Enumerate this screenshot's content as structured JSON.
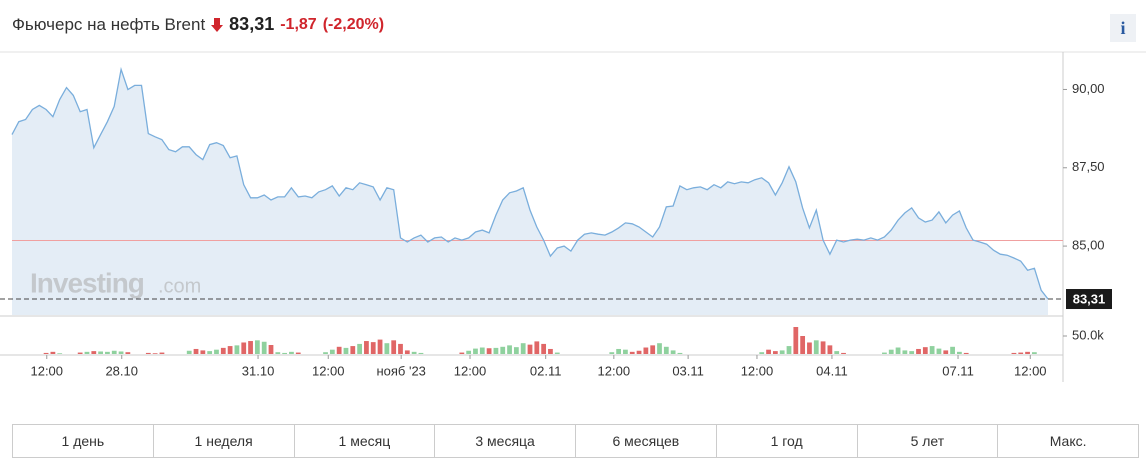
{
  "header": {
    "title": "Фьючерс на нефть Brent",
    "price": "83,31",
    "change": "-1,87",
    "change_pct": "(-2,20%)",
    "info": "i"
  },
  "chart_data": {
    "type": "line",
    "watermark": [
      "Investing",
      ".com"
    ],
    "x": [
      0,
      1,
      2,
      3,
      4,
      5,
      6,
      7,
      8,
      9,
      10,
      11,
      12,
      13,
      14,
      15,
      16,
      17,
      18,
      19,
      20,
      21,
      22,
      23,
      24,
      25,
      26,
      27,
      28,
      29,
      30,
      31,
      32,
      33,
      34,
      35,
      36,
      37,
      38,
      39,
      40,
      41,
      42,
      43,
      44,
      45,
      46,
      47,
      48,
      49,
      50,
      51,
      52,
      53,
      54,
      55,
      56,
      57,
      58,
      59,
      60,
      61,
      62,
      63,
      64,
      65,
      66,
      67,
      68,
      69,
      70,
      71,
      72,
      73,
      74,
      75,
      76,
      77,
      78,
      79,
      80,
      81,
      82,
      83,
      84,
      85,
      86,
      87,
      88,
      89,
      90,
      91,
      92,
      93,
      94,
      95,
      96,
      97,
      98,
      99,
      100,
      101,
      102,
      103,
      104,
      105,
      106,
      107,
      108,
      109,
      110,
      111,
      112,
      113,
      114,
      115,
      116,
      117,
      118,
      119,
      120,
      121,
      122,
      123,
      124,
      125,
      126,
      127,
      128,
      129,
      130,
      131,
      132,
      133,
      134,
      135,
      136,
      137,
      138,
      139,
      140,
      141,
      142,
      143,
      144,
      145,
      146,
      147,
      148,
      149,
      150,
      151,
      152
    ],
    "xlim": [
      0,
      152
    ],
    "xticks": [
      {
        "value": 5.1,
        "label": "12:00"
      },
      {
        "value": 16.1,
        "label": "28.10"
      },
      {
        "value": 36.1,
        "label": "31.10"
      },
      {
        "value": 46.4,
        "label": "12:00"
      },
      {
        "value": 57.1,
        "label": "нояб '23"
      },
      {
        "value": 67.2,
        "label": "12:00"
      },
      {
        "value": 78.3,
        "label": "02.11"
      },
      {
        "value": 88.3,
        "label": "12:00"
      },
      {
        "value": 99.2,
        "label": "03.11"
      },
      {
        "value": 109.3,
        "label": "12:00"
      },
      {
        "value": 120.3,
        "label": "04.11"
      },
      {
        "value": 138.8,
        "label": "07.11"
      },
      {
        "value": 149.4,
        "label": "12:00"
      }
    ],
    "ylim": [
      82.8,
      91.1
    ],
    "yticks": [
      {
        "value": 85,
        "label": "85,00"
      },
      {
        "value": 87.5,
        "label": "87,50"
      },
      {
        "value": 90,
        "label": "90,00"
      }
    ],
    "y2lim": [
      0,
      100000
    ],
    "y2ticks": [
      {
        "value": 50000,
        "label": "50.0k"
      }
    ],
    "ref_line": 85.18,
    "ref_color": "#f0a0a0",
    "series": [
      {
        "color": "#7aaedc",
        "fill": "#e4edf6",
        "values": [
          88.56,
          88.97,
          89.04,
          89.36,
          89.49,
          89.36,
          89.13,
          89.68,
          90.06,
          89.81,
          89.29,
          89.36,
          88.14,
          88.56,
          88.97,
          89.46,
          90.64,
          90.0,
          90.13,
          90.13,
          88.59,
          88.49,
          88.4,
          88.08,
          88.01,
          88.17,
          88.17,
          87.92,
          87.76,
          88.24,
          88.3,
          88.21,
          87.82,
          87.88,
          86.96,
          86.54,
          86.54,
          86.63,
          86.47,
          86.57,
          86.57,
          86.86,
          86.57,
          86.6,
          86.54,
          86.73,
          86.8,
          86.92,
          86.6,
          86.86,
          86.8,
          87.02,
          86.96,
          86.89,
          86.47,
          86.86,
          86.8,
          85.26,
          85.13,
          85.26,
          85.35,
          85.13,
          85.26,
          85.29,
          85.13,
          85.26,
          85.19,
          85.26,
          85.45,
          85.51,
          85.42,
          85.99,
          86.47,
          86.7,
          86.76,
          86.86,
          86.15,
          85.61,
          85.19,
          84.68,
          84.94,
          85.0,
          84.84,
          85.19,
          85.38,
          85.42,
          85.38,
          85.35,
          85.45,
          85.58,
          85.74,
          85.71,
          85.61,
          85.45,
          85.29,
          85.61,
          86.25,
          86.28,
          86.92,
          86.8,
          86.86,
          86.89,
          86.8,
          86.96,
          86.86,
          87.05,
          86.99,
          87.05,
          87.02,
          87.12,
          87.18,
          87.02,
          86.63,
          87.02,
          87.53,
          87.05,
          86.22,
          85.58,
          86.15,
          85.19,
          84.74,
          85.19,
          85.13,
          85.19,
          85.22,
          85.19,
          85.26,
          85.19,
          85.29,
          85.51,
          85.83,
          86.06,
          86.22,
          85.9,
          85.77,
          85.83,
          86.09,
          85.74,
          85.99,
          86.12,
          85.58,
          85.19,
          85.13,
          85.06,
          84.87,
          84.74,
          84.71,
          84.62,
          84.52,
          84.23,
          84.29,
          83.59,
          83.31
        ]
      },
      {
        "type": "bar",
        "axis": "y2",
        "colors": {
          "up": "#8fd19e",
          "down": "#e06666"
        },
        "values": [
          0,
          0,
          0,
          0,
          0,
          3000,
          6000,
          2000,
          0,
          0,
          4000,
          6000,
          8000,
          7000,
          6000,
          9000,
          7000,
          5000,
          0,
          0,
          3000,
          2000,
          4000,
          0,
          0,
          0,
          9000,
          14000,
          10000,
          8000,
          12000,
          17000,
          22000,
          24000,
          32000,
          36000,
          38000,
          34000,
          25000,
          5000,
          3000,
          6000,
          4000,
          0,
          0,
          0,
          5000,
          12000,
          20000,
          17000,
          22000,
          28000,
          36000,
          33000,
          40000,
          30000,
          38000,
          28000,
          10000,
          6000,
          3000,
          0,
          0,
          0,
          0,
          0,
          4000,
          9000,
          15000,
          18000,
          16000,
          17000,
          20000,
          24000,
          19000,
          30000,
          26000,
          35000,
          28000,
          14000,
          4000,
          0,
          0,
          0,
          0,
          0,
          0,
          0,
          5000,
          14000,
          12000,
          6000,
          9000,
          18000,
          24000,
          30000,
          20000,
          10000,
          3000,
          0,
          0,
          0,
          0,
          0,
          0,
          0,
          0,
          0,
          0,
          0,
          5000,
          12000,
          8000,
          10000,
          22000,
          75000,
          50000,
          32000,
          38000,
          35000,
          24000,
          8000,
          3000,
          0,
          0,
          0,
          0,
          0,
          4000,
          12000,
          18000,
          10000,
          8000,
          14000,
          19000,
          22000,
          15000,
          10000,
          20000,
          6000,
          3000,
          0,
          0,
          0,
          0,
          0,
          0,
          3000,
          4000,
          6000,
          5000,
          0,
          0
        ]
      }
    ]
  },
  "periods": [
    "1 день",
    "1 неделя",
    "1 месяц",
    "3 месяца",
    "6 месяцев",
    "1 год",
    "5 лет",
    "Макс."
  ]
}
